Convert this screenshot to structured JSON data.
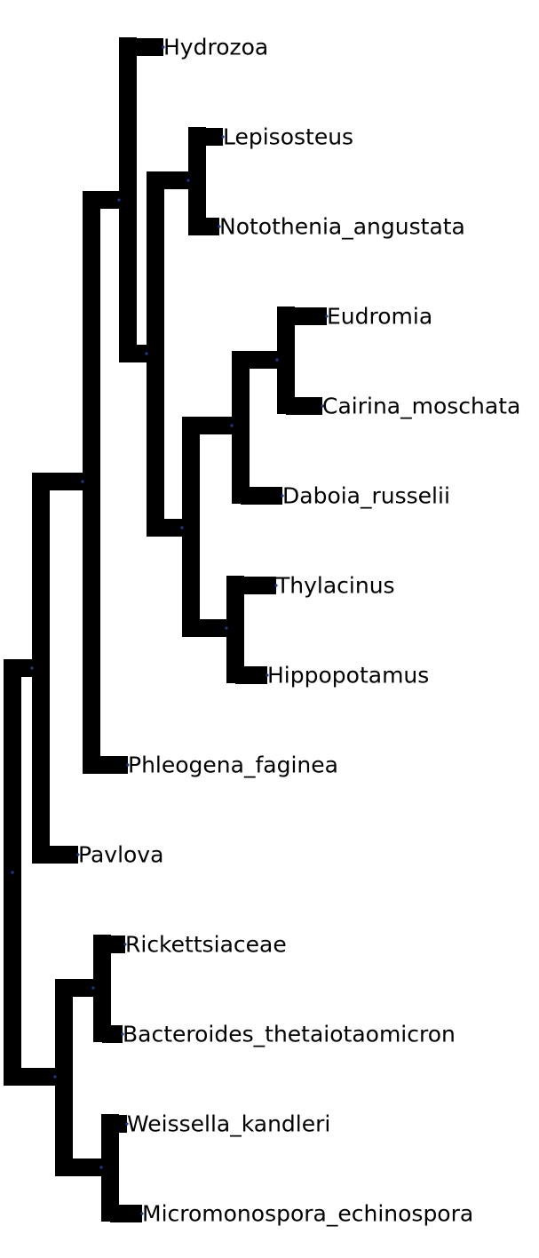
{
  "tree": {
    "branch_color": "#000000",
    "node_dot_color": "#1f3a93",
    "background": "#ffffff",
    "leaves": [
      "Hydrozoa",
      "Lepisosteus",
      "Notothenia_angustata",
      "Eudromia",
      "Cairina_moschata",
      "Daboia_russelii",
      "Thylacinus",
      "Hippopotamus",
      "Phleogena_faginea",
      "Pavlova",
      "Rickettsiaceae",
      "Bacteroides_thetaiotaomicron",
      "Weissella_kandleri",
      "Micromonospora_echinospora"
    ]
  }
}
